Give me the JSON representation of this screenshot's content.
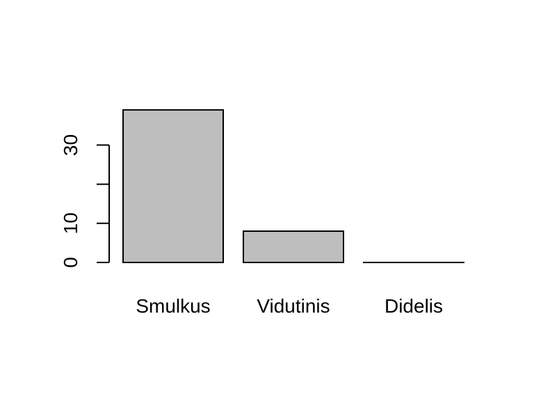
{
  "chart_data": {
    "type": "bar",
    "title": "",
    "xlabel": "",
    "ylabel": "",
    "categories": [
      "Smulkus",
      "Vidutinis",
      "Didelis"
    ],
    "values": [
      39,
      8,
      0
    ],
    "ylim": [
      0,
      39
    ],
    "yticks": [
      0,
      10,
      20,
      30
    ],
    "ytick_labels": [
      "0",
      "10",
      "",
      "30"
    ],
    "bar_color": "#bebebe",
    "border_color": "#000000",
    "grid": false
  }
}
